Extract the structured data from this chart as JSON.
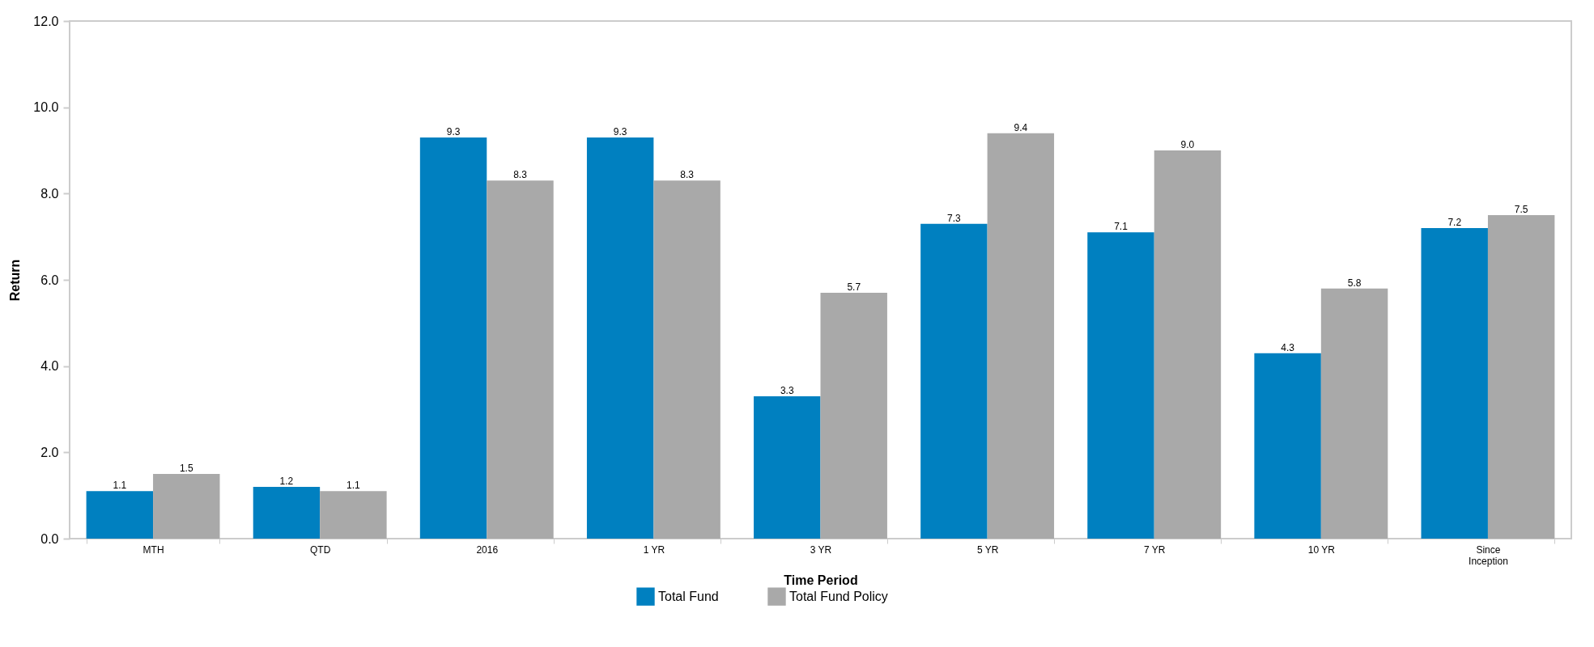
{
  "chart_data": {
    "type": "bar",
    "xlabel": "Time Period",
    "ylabel": "Return",
    "categories": [
      "MTH",
      "QTD",
      "2016",
      "1 YR",
      "3 YR",
      "5 YR",
      "7 YR",
      "10 YR",
      "Since Inception"
    ],
    "series": [
      {
        "name": "Total Fund",
        "color": "#0080c0",
        "values": [
          1.1,
          1.2,
          9.3,
          9.3,
          3.3,
          7.3,
          7.1,
          4.3,
          7.2
        ],
        "value_labels": [
          "1.1",
          "1.2",
          "9.3",
          "9.3",
          "3.3",
          "7.3",
          "7.1",
          "4.3",
          "7.2"
        ]
      },
      {
        "name": "Total Fund Policy",
        "color": "#a9a9a9",
        "values": [
          1.5,
          1.1,
          8.3,
          8.3,
          5.7,
          9.4,
          9.0,
          5.8,
          7.5
        ],
        "value_labels": [
          "1.5",
          "1.1",
          "8.3",
          "8.3",
          "5.7",
          "9.4",
          "9.0",
          "5.8",
          "7.5"
        ]
      }
    ],
    "ylim": [
      0,
      12
    ],
    "yticks": [
      {
        "value": 0,
        "label": "0.0"
      },
      {
        "value": 2,
        "label": "2.0"
      },
      {
        "value": 4,
        "label": "4.0"
      },
      {
        "value": 6,
        "label": "6.0"
      },
      {
        "value": 8,
        "label": "8.0"
      },
      {
        "value": 10,
        "label": "10.0"
      },
      {
        "value": 12,
        "label": "12.0"
      }
    ],
    "legend": "bottom",
    "grid": false
  }
}
